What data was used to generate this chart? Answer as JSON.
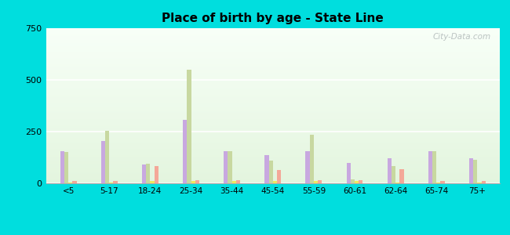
{
  "title": "Place of birth by age - State Line",
  "categories": [
    "<5",
    "5-17",
    "18-24",
    "25-34",
    "35-44",
    "45-54",
    "55-59",
    "60-61",
    "62-64",
    "65-74",
    "75+"
  ],
  "series": {
    "Born in state of residence": [
      155,
      205,
      90,
      305,
      155,
      135,
      155,
      100,
      120,
      155,
      120
    ],
    "Born in other state": [
      150,
      255,
      95,
      550,
      155,
      110,
      235,
      20,
      85,
      155,
      115
    ],
    "Native, outside of US": [
      5,
      5,
      10,
      12,
      12,
      10,
      10,
      10,
      5,
      5,
      5
    ],
    "Foreign-born": [
      10,
      10,
      85,
      15,
      15,
      65,
      15,
      15,
      70,
      10,
      10
    ]
  },
  "colors": {
    "Born in state of residence": "#c8a8e0",
    "Born in other state": "#c8d8a0",
    "Native, outside of US": "#f0e860",
    "Foreign-born": "#f4a898"
  },
  "ylim": [
    0,
    750
  ],
  "yticks": [
    0,
    250,
    500,
    750
  ],
  "outer_bg": "#00dede",
  "watermark": "City-Data.com"
}
